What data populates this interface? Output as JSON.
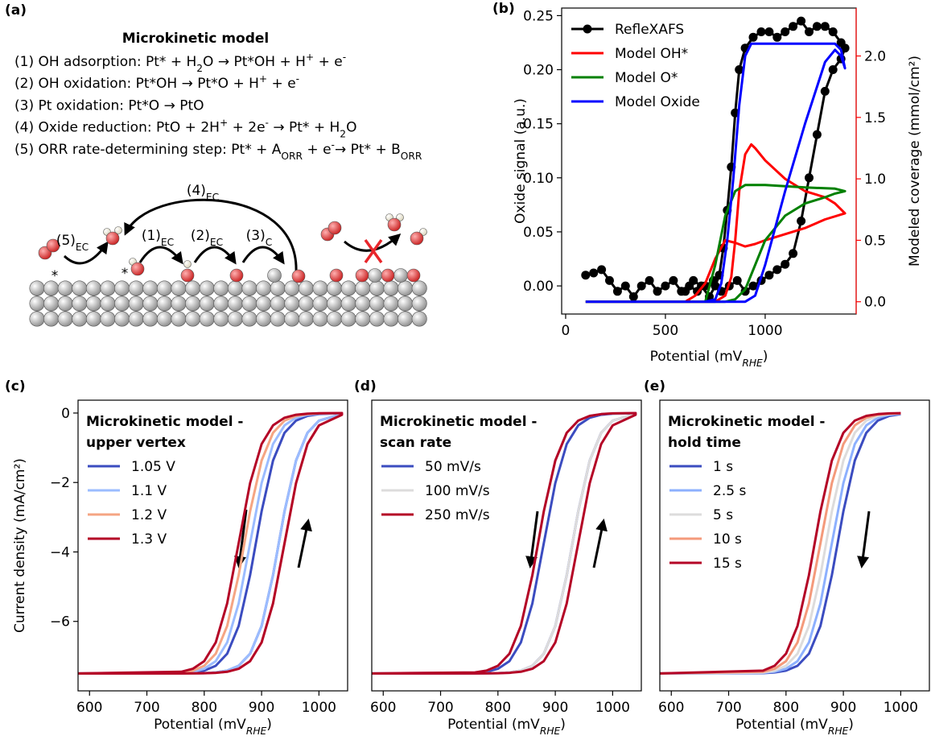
{
  "panel_a": {
    "label": "(a)",
    "title": "Microkinetic model",
    "steps": [
      [
        "(1) OH adsorption: Pt* + H",
        {
          "sub": "2"
        },
        "O → Pt*OH + H",
        {
          "sup": "+"
        },
        " + e",
        {
          "sup": "-"
        }
      ],
      [
        "(2) OH oxidation: Pt*OH → Pt*O + H",
        {
          "sup": "+"
        },
        " + e",
        {
          "sup": "-"
        }
      ],
      [
        "(3) Pt oxidation: Pt*O → PtO"
      ],
      [
        "(4) Oxide reduction: PtO + 2H",
        {
          "sup": "+"
        },
        " + 2e",
        {
          "sup": "-"
        },
        " → Pt* + H",
        {
          "sub": "2"
        },
        "O"
      ],
      [
        "(5) ORR rate-determining step: Pt* + A",
        {
          "sub": "ORR"
        },
        " + e",
        {
          "sup": "-"
        },
        "→ Pt* + B",
        {
          "sub": "ORR"
        }
      ]
    ],
    "diagram_labels": [
      [
        "(4)",
        {
          "sub": "EC"
        }
      ],
      [
        "(5)",
        {
          "sub": "EC"
        }
      ],
      [
        "(1)",
        {
          "sub": "EC"
        }
      ],
      [
        "(2)",
        {
          "sub": "EC"
        }
      ],
      [
        "(3)",
        {
          "sub": "C"
        }
      ]
    ],
    "sites": [
      "*",
      "*"
    ]
  },
  "chart_data": [
    {
      "type": "line",
      "label": "(b)",
      "xlabel": [
        "Potential (mV",
        {
          "sub": "RHE"
        },
        ")"
      ],
      "ylabel": "Oxide signal (a.u.)",
      "y2label": "Modeled coverage (mmol/cm²)",
      "y2_color": "#ff0000",
      "xlim": [
        -20,
        1456
      ],
      "ylim": [
        -0.026,
        0.257
      ],
      "y2lim": [
        -0.1,
        2.39
      ],
      "xticks": [
        0,
        500,
        1000
      ],
      "yticks": [
        {
          "value": 0,
          "label": "0.00"
        },
        0.05,
        {
          "value": 0.1,
          "label": "0.10"
        },
        0.15,
        {
          "value": 0.2,
          "label": "0.20"
        },
        0.25
      ],
      "y2ticks": [
        {
          "value": 0,
          "label": "0.0"
        },
        0.5,
        {
          "value": 1,
          "label": "1.0"
        },
        1.5,
        {
          "value": 2,
          "label": "2.0"
        }
      ],
      "legend": "upper left",
      "series": [
        {
          "name": "RefleXAFS",
          "color": "#000000",
          "marker": "o",
          "x": [
            100,
            140,
            180,
            220,
            260,
            300,
            340,
            380,
            420,
            460,
            500,
            540,
            580,
            620,
            660,
            700,
            740,
            780,
            820,
            860,
            900,
            940,
            980,
            1020,
            1060,
            1100,
            1140,
            1180,
            1220,
            1260,
            1300,
            1340,
            1380,
            1400,
            1380,
            1340,
            1300,
            1260,
            1220,
            1180,
            1140,
            1100,
            1060,
            1020,
            980,
            940,
            900,
            870,
            850,
            830,
            810,
            790,
            770,
            750,
            720,
            680,
            640,
            600
          ],
          "values": [
            0.01,
            0.012,
            0.015,
            0.005,
            -0.005,
            0.0,
            -0.01,
            0.0,
            0.005,
            -0.005,
            0.0,
            0.005,
            -0.005,
            0.0,
            -0.005,
            0.0,
            0.005,
            -0.005,
            0.0,
            0.005,
            -0.005,
            0.0,
            0.005,
            0.01,
            0.015,
            0.02,
            0.03,
            0.06,
            0.1,
            0.14,
            0.18,
            0.2,
            0.21,
            0.22,
            0.225,
            0.235,
            0.24,
            0.24,
            0.235,
            0.245,
            0.24,
            0.235,
            0.23,
            0.235,
            0.235,
            0.23,
            0.22,
            0.2,
            0.16,
            0.11,
            0.07,
            0.035,
            0.01,
            0.0,
            -0.01,
            0.0,
            0.005,
            -0.005
          ]
        },
        {
          "name": "Model OH*",
          "color": "#ff0000",
          "axis": "y2",
          "x": [
            100,
            600,
            650,
            700,
            750,
            800,
            850,
            900,
            950,
            1000,
            1100,
            1200,
            1300,
            1400,
            1350,
            1300,
            1200,
            1100,
            1000,
            950,
            930,
            900,
            870,
            850,
            830,
            800,
            750,
            600
          ],
          "values": [
            0,
            0,
            0.05,
            0.15,
            0.35,
            0.5,
            0.48,
            0.45,
            0.47,
            0.5,
            0.55,
            0.6,
            0.67,
            0.72,
            0.8,
            0.85,
            0.9,
            1.0,
            1.15,
            1.25,
            1.28,
            1.2,
            0.9,
            0.5,
            0.2,
            0.05,
            0,
            0
          ]
        },
        {
          "name": "Model O*",
          "color": "#008000",
          "axis": "y2",
          "x": [
            100,
            700,
            750,
            800,
            850,
            900,
            1000,
            1200,
            1350,
            1400,
            1350,
            1300,
            1200,
            1100,
            1000,
            950,
            900,
            850,
            800,
            600
          ],
          "values": [
            0,
            0,
            0.3,
            0.7,
            0.9,
            0.95,
            0.95,
            0.93,
            0.92,
            0.9,
            0.88,
            0.85,
            0.8,
            0.7,
            0.5,
            0.3,
            0.1,
            0.02,
            0,
            0
          ]
        },
        {
          "name": "Model Oxide",
          "color": "#0000ff",
          "axis": "y2",
          "x": [
            100,
            900,
            950,
            1000,
            1100,
            1200,
            1300,
            1350,
            1380,
            1400,
            1380,
            1350,
            1200,
            1000,
            930,
            900,
            870,
            840,
            810,
            780,
            750,
            700,
            100
          ],
          "values": [
            0,
            0,
            0.05,
            0.3,
            0.9,
            1.45,
            1.95,
            2.05,
            2.0,
            1.9,
            2.05,
            2.1,
            2.1,
            2.1,
            2.1,
            2.0,
            1.6,
            1.0,
            0.5,
            0.15,
            0.02,
            0,
            0
          ]
        }
      ]
    },
    {
      "type": "line",
      "label": "(c)",
      "legend_title": [
        "Microkinetic model -",
        "upper vertex"
      ],
      "legend": "upper left",
      "xlabel": [
        "Potential (mV",
        {
          "sub": "RHE"
        },
        ")"
      ],
      "ylabel": "Current density (mA/cm²)",
      "xlim": [
        580,
        1050
      ],
      "ylim": [
        -8.0,
        0.37
      ],
      "xticks": [
        600,
        700,
        800,
        900,
        1000
      ],
      "yticks": [
        {
          "value": -6,
          "label": "−6"
        },
        {
          "value": -4,
          "label": "−4"
        },
        {
          "value": -2,
          "label": "−2"
        },
        0
      ],
      "x": [
        580,
        760,
        780,
        800,
        820,
        840,
        860,
        880,
        900,
        920,
        940,
        960,
        980,
        1000,
        1040,
        1040,
        1000,
        980,
        960,
        940,
        920,
        900,
        880,
        860,
        840,
        820,
        800,
        780,
        760,
        580
      ],
      "series": [
        {
          "name": "1.05 V",
          "color": "#3b4cc0",
          "values": [
            -7.5,
            -7.498,
            -7.496,
            -7.489,
            -7.469,
            -7.418,
            -7.28,
            -6.931,
            -6.132,
            -4.669,
            -2.831,
            -1.368,
            -0.569,
            -0.22,
            -0.031,
            -0.004,
            -0.031,
            -0.082,
            -0.22,
            -0.569,
            -1.368,
            -2.831,
            -4.669,
            -6.132,
            -6.931,
            -7.28,
            -7.418,
            -7.469,
            -7.489,
            -7.5
          ]
        },
        {
          "name": "1.1 V",
          "color": "#9bbcff",
          "values": [
            -7.5,
            -7.498,
            -7.496,
            -7.489,
            -7.469,
            -7.418,
            -7.28,
            -6.931,
            -6.132,
            -4.669,
            -2.831,
            -1.368,
            -0.569,
            -0.22,
            -0.031,
            -0.003,
            -0.019,
            -0.05,
            -0.135,
            -0.356,
            -0.894,
            -2.017,
            -3.75,
            -5.482,
            -6.607,
            -7.144,
            -7.365,
            -7.45,
            -7.481,
            -7.5
          ]
        },
        {
          "name": "1.2 V",
          "color": "#f5a583",
          "values": [
            -7.5,
            -7.499,
            -7.497,
            -7.493,
            -7.481,
            -7.45,
            -7.365,
            -7.144,
            -6.607,
            -5.482,
            -3.75,
            -2.017,
            -0.894,
            -0.356,
            -0.05,
            -0.002,
            -0.011,
            -0.031,
            -0.082,
            -0.22,
            -0.569,
            -1.368,
            -2.831,
            -4.669,
            -6.132,
            -6.931,
            -7.28,
            -7.418,
            -7.469,
            -7.5
          ]
        },
        {
          "name": "1.3 V",
          "color": "#b40426",
          "values": [
            -7.5,
            -7.499,
            -7.497,
            -7.493,
            -7.481,
            -7.45,
            -7.365,
            -7.144,
            -6.607,
            -5.482,
            -3.75,
            -2.017,
            -0.894,
            -0.356,
            -0.05,
            -0.001,
            -0.007,
            -0.019,
            -0.05,
            -0.135,
            -0.356,
            -0.894,
            -2.017,
            -3.75,
            -5.482,
            -6.607,
            -7.144,
            -7.365,
            -7.45,
            -7.5
          ]
        }
      ]
    },
    {
      "type": "line",
      "label": "(d)",
      "legend_title": [
        "Microkinetic model -",
        "scan rate"
      ],
      "legend": "upper left",
      "xlabel": [
        "Potential (mV",
        {
          "sub": "RHE"
        },
        ")"
      ],
      "xlim": [
        580,
        1050
      ],
      "ylim": [
        -8.0,
        0.37
      ],
      "xticks": [
        600,
        700,
        800,
        900,
        1000
      ],
      "x": [
        580,
        760,
        780,
        800,
        820,
        840,
        860,
        880,
        900,
        920,
        940,
        960,
        980,
        1000,
        1040,
        1040,
        1000,
        980,
        960,
        940,
        920,
        900,
        880,
        860,
        840,
        820,
        800,
        780,
        760,
        580
      ],
      "series": [
        {
          "name": "50 mV/s",
          "color": "#3b4cc0",
          "values": [
            -7.5,
            -7.498,
            -7.496,
            -7.489,
            -7.469,
            -7.418,
            -7.28,
            -6.931,
            -6.132,
            -4.669,
            -2.831,
            -1.368,
            -0.569,
            -0.22,
            -0.031,
            -0.003,
            -0.019,
            -0.05,
            -0.135,
            -0.356,
            -0.894,
            -2.017,
            -3.75,
            -5.482,
            -6.607,
            -7.144,
            -7.365,
            -7.45,
            -7.481,
            -7.5
          ]
        },
        {
          "name": "100 mV/s",
          "color": "#dddcdc",
          "values": [
            -7.5,
            -7.498,
            -7.496,
            -7.489,
            -7.469,
            -7.418,
            -7.28,
            -6.931,
            -6.132,
            -4.669,
            -2.831,
            -1.368,
            -0.569,
            -0.22,
            -0.031,
            -0.002,
            -0.011,
            -0.031,
            -0.082,
            -0.22,
            -0.569,
            -1.368,
            -2.831,
            -4.669,
            -6.132,
            -6.931,
            -7.28,
            -7.418,
            -7.469,
            -7.5
          ]
        },
        {
          "name": "250 mV/s",
          "color": "#b40426",
          "values": [
            -7.5,
            -7.499,
            -7.497,
            -7.493,
            -7.481,
            -7.45,
            -7.365,
            -7.144,
            -6.607,
            -5.482,
            -3.75,
            -2.017,
            -0.894,
            -0.356,
            -0.05,
            -0.002,
            -0.011,
            -0.031,
            -0.082,
            -0.22,
            -0.569,
            -1.368,
            -2.831,
            -4.669,
            -6.132,
            -6.931,
            -7.28,
            -7.418,
            -7.469,
            -7.5
          ]
        }
      ]
    },
    {
      "type": "line",
      "label": "(e)",
      "legend_title": [
        "Microkinetic model -",
        "hold time"
      ],
      "legend": "upper left",
      "xlabel": [
        "Potential (mV",
        {
          "sub": "RHE"
        },
        ")"
      ],
      "xlim": [
        580,
        1050
      ],
      "ylim": [
        -8.0,
        0.37
      ],
      "xticks": [
        600,
        700,
        800,
        900,
        1000
      ],
      "x": [
        580,
        760,
        780,
        800,
        820,
        840,
        860,
        880,
        900,
        920,
        940,
        960,
        980,
        1000
      ],
      "series": [
        {
          "name": "1 s",
          "color": "#3b4cc0",
          "values": [
            -7.5,
            -7.489,
            -7.469,
            -7.418,
            -7.28,
            -6.931,
            -6.132,
            -4.669,
            -2.831,
            -1.368,
            -0.569,
            -0.22,
            -0.082,
            -0.031
          ]
        },
        {
          "name": "2.5 s",
          "color": "#8db0fe",
          "values": [
            -7.5,
            -7.481,
            -7.45,
            -7.365,
            -7.144,
            -6.607,
            -5.482,
            -3.75,
            -2.017,
            -0.894,
            -0.356,
            -0.135,
            -0.05,
            -0.019
          ]
        },
        {
          "name": "5 s",
          "color": "#dddcdc",
          "values": [
            -7.5,
            -7.469,
            -7.418,
            -7.28,
            -6.931,
            -6.132,
            -4.669,
            -2.831,
            -1.368,
            -0.569,
            -0.22,
            -0.082,
            -0.031,
            -0.011
          ]
        },
        {
          "name": "10 s",
          "color": "#f49a7b",
          "values": [
            -7.5,
            -7.45,
            -7.365,
            -7.144,
            -6.607,
            -5.482,
            -3.75,
            -2.017,
            -0.894,
            -0.356,
            -0.135,
            -0.05,
            -0.019,
            -0.007
          ]
        },
        {
          "name": "15 s",
          "color": "#b40426",
          "values": [
            -7.5,
            -7.418,
            -7.28,
            -6.931,
            -6.132,
            -4.669,
            -2.831,
            -1.368,
            -0.569,
            -0.22,
            -0.082,
            -0.031,
            -0.011,
            -0.004
          ]
        }
      ]
    }
  ]
}
